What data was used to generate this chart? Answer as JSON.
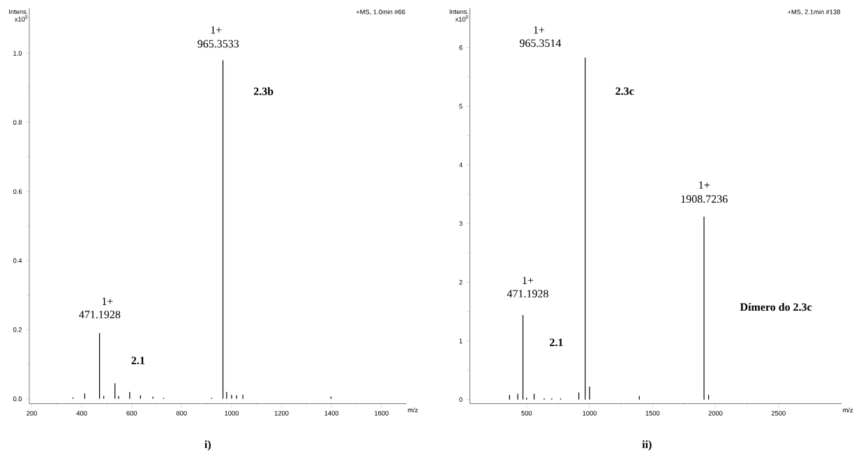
{
  "chart_data": [
    {
      "type": "bar",
      "title": "i)",
      "subtitle": "+MS, 1.0min #66",
      "xlabel": "m/z",
      "ylabel": "Intens. x10$^{5}$",
      "x": [
        365,
        412,
        471.1928,
        488,
        533,
        548,
        592,
        635,
        685,
        728,
        920,
        965.3533,
        980,
        1000,
        1020,
        1045,
        1398
      ],
      "values": [
        0.004,
        0.015,
        0.19,
        0.008,
        0.045,
        0.008,
        0.02,
        0.01,
        0.006,
        0.003,
        0.003,
        0.98,
        0.02,
        0.012,
        0.01,
        0.012,
        0.007
      ],
      "color": "#000000",
      "xlim": [
        190,
        1700
      ],
      "xticks": [
        200,
        400,
        600,
        800,
        1000,
        1200,
        1400,
        1600
      ],
      "ylim": [
        -0.014,
        1.13
      ],
      "yticks": [
        {
          "value": 0,
          "label": "0.0"
        },
        0.2,
        0.4,
        0.6,
        0.8,
        {
          "value": 1,
          "label": "1.0"
        }
      ],
      "annotations": [
        "1+",
        "965.3533",
        "2.3b",
        "1+",
        "471.1928",
        "2.1"
      ]
    },
    {
      "type": "bar",
      "title": "ii)",
      "subtitle": "+MS, 2.1min #138",
      "xlabel": "m/z",
      "ylabel": "Intens. x10$^{5}$",
      "x": [
        365,
        430,
        471.1928,
        500,
        560,
        640,
        700,
        770,
        915,
        965.3514,
        1000,
        1395,
        1908.7236,
        1945
      ],
      "values": [
        0.08,
        0.1,
        1.44,
        0.03,
        0.1,
        0.02,
        0.02,
        0.02,
        0.12,
        5.83,
        0.22,
        0.06,
        3.12,
        0.08
      ],
      "color": "#000000",
      "xlim": [
        50,
        3000
      ],
      "xticks": [
        500,
        1000,
        1500,
        2000,
        2500
      ],
      "ylim": [
        -0.07,
        6.67
      ],
      "yticks": [
        0,
        1,
        2,
        3,
        4,
        5,
        6
      ],
      "annotations": [
        "1+",
        "965.3514",
        "2.3c",
        "1+",
        "1908.7236",
        "1+",
        "471.1928",
        "2.1",
        "Dímero do 2.3c"
      ]
    }
  ]
}
